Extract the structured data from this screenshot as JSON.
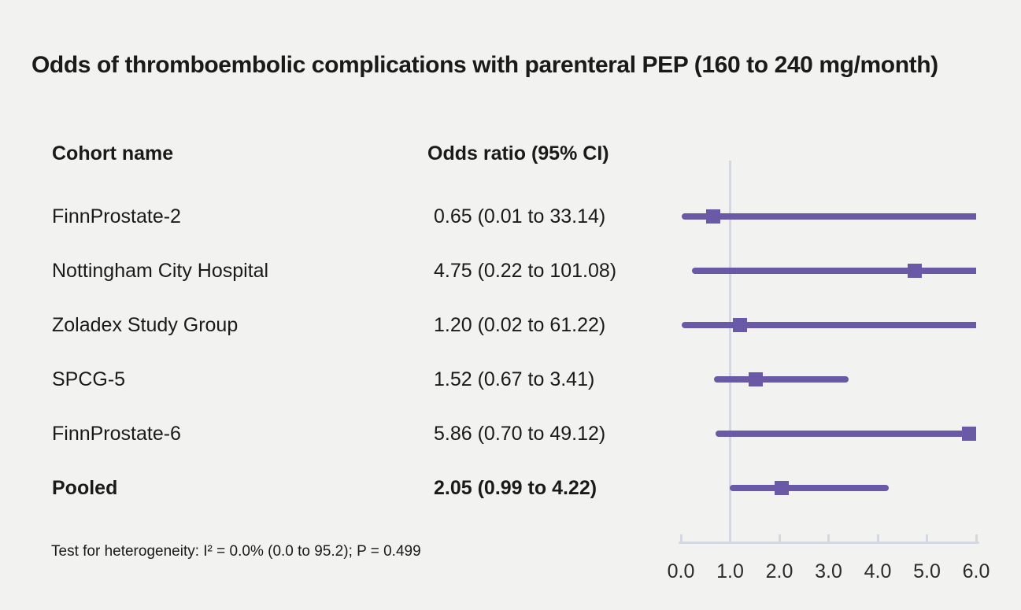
{
  "title": "Odds of thromboembolic complications with parenteral PEP (160 to 240 mg/month)",
  "columns": {
    "cohort": "Cohort name",
    "or": "Odds ratio (95% CI)"
  },
  "footnote": "Test for heterogeneity: I² = 0.0% (0.0 to 95.2); P = 0.499",
  "colors": {
    "background": "#F2F2F0",
    "text": "#1A1A1A",
    "accent": "#6A59A7",
    "axis": "#D4D8E0"
  },
  "chart_data": {
    "type": "forest",
    "title": "Odds of thromboembolic complications with parenteral PEP (160 to 240 mg/month)",
    "xlabel": "",
    "xlim": [
      0,
      6
    ],
    "reference_line": 1.0,
    "axis_ticks": [
      "0.0",
      "1.0",
      "2.0",
      "3.0",
      "4.0",
      "5.0",
      "6.0"
    ],
    "rows": [
      {
        "label": "FinnProstate-2",
        "display": "0.65 (0.01 to 33.14)",
        "or": 0.65,
        "ci_low": 0.01,
        "ci_high": 33.14,
        "bold": false
      },
      {
        "label": "Nottingham City Hospital",
        "display": "4.75 (0.22 to 101.08)",
        "or": 4.75,
        "ci_low": 0.22,
        "ci_high": 101.08,
        "bold": false
      },
      {
        "label": "Zoladex Study Group",
        "display": "1.20 (0.02 to 61.22)",
        "or": 1.2,
        "ci_low": 0.02,
        "ci_high": 61.22,
        "bold": false
      },
      {
        "label": "SPCG-5",
        "display": "1.52 (0.67 to 3.41)",
        "or": 1.52,
        "ci_low": 0.67,
        "ci_high": 3.41,
        "bold": false
      },
      {
        "label": "FinnProstate-6",
        "display": "5.86 (0.70 to 49.12)",
        "or": 5.86,
        "ci_low": 0.7,
        "ci_high": 49.12,
        "bold": false
      },
      {
        "label": "Pooled",
        "display": "2.05 (0.99 to 4.22)",
        "or": 2.05,
        "ci_low": 0.99,
        "ci_high": 4.22,
        "bold": true
      }
    ]
  }
}
